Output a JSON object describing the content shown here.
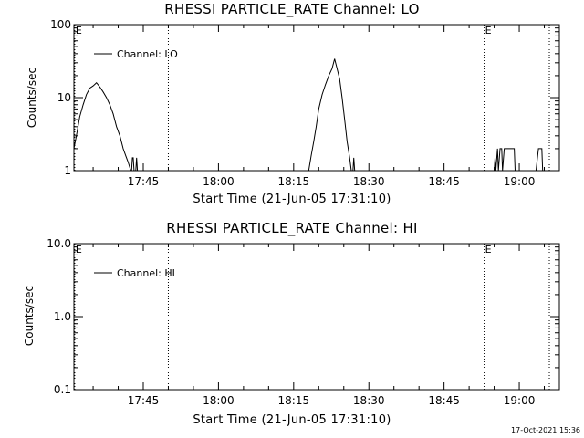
{
  "footer": {
    "timestamp": "17-Oct-2021 15:36"
  },
  "chart_data": [
    {
      "type": "line",
      "title": "RHESSI PARTICLE_RATE Channel: LO",
      "xlabel": "Start Time (21-Jun-05 17:31:10)",
      "ylabel": "Counts/sec",
      "yscale": "log",
      "ylim": [
        1,
        100
      ],
      "xlim": [
        "17:31:10",
        "19:08:00"
      ],
      "x_ticks": [
        "17:45",
        "18:00",
        "18:15",
        "18:30",
        "18:45",
        "19:00"
      ],
      "y_ticks": [
        "1",
        "10",
        "100"
      ],
      "legend": {
        "position": "top-left",
        "entries": [
          "Channel: LO"
        ]
      },
      "event_markers": [
        {
          "time": "17:31:20",
          "label": "E"
        },
        {
          "time": "17:50:00",
          "label": ""
        },
        {
          "time": "18:53:00",
          "label": "E"
        },
        {
          "time": "19:06:00",
          "label": ""
        }
      ],
      "series": [
        {
          "name": "Channel: LO",
          "segments": [
            [
              [
                "17:31:10",
                2.0
              ],
              [
                "17:31:40",
                3.0
              ],
              [
                "17:32:20",
                5.5
              ],
              [
                "17:33:00",
                8.0
              ],
              [
                "17:33:40",
                11.0
              ],
              [
                "17:34:20",
                13.5
              ],
              [
                "17:35:00",
                14.5
              ],
              [
                "17:35:40",
                16.0
              ],
              [
                "17:36:20",
                14.0
              ],
              [
                "17:37:00",
                12.0
              ],
              [
                "17:37:40",
                10.0
              ],
              [
                "17:38:20",
                8.0
              ],
              [
                "17:39:00",
                6.0
              ],
              [
                "17:39:40",
                4.0
              ],
              [
                "17:40:20",
                3.0
              ],
              [
                "17:41:00",
                2.0
              ],
              [
                "17:41:30",
                1.6
              ],
              [
                "17:42:00",
                1.3
              ],
              [
                "17:42:30",
                1.0
              ]
            ],
            [
              [
                "17:42:40",
                1.0
              ],
              [
                "17:42:50",
                1.5
              ],
              [
                "17:43:00",
                1.5
              ],
              [
                "17:43:10",
                1.0
              ]
            ],
            [
              [
                "17:43:30",
                1.0
              ],
              [
                "17:43:40",
                1.5
              ],
              [
                "17:43:50",
                1.0
              ]
            ],
            [
              [
                "18:18:00",
                1.0
              ],
              [
                "18:18:30",
                1.6
              ],
              [
                "18:19:00",
                2.5
              ],
              [
                "18:19:30",
                4.0
              ],
              [
                "18:20:00",
                7.0
              ],
              [
                "18:20:40",
                11.0
              ],
              [
                "18:21:20",
                15.0
              ],
              [
                "18:22:00",
                20.0
              ],
              [
                "18:22:40",
                25.0
              ],
              [
                "18:23:10",
                34.0
              ],
              [
                "18:23:40",
                25.0
              ],
              [
                "18:24:10",
                18.0
              ],
              [
                "18:24:40",
                10.0
              ],
              [
                "18:25:10",
                5.0
              ],
              [
                "18:25:40",
                2.5
              ],
              [
                "18:26:10",
                1.5
              ],
              [
                "18:26:30",
                1.0
              ]
            ],
            [
              [
                "18:26:50",
                1.0
              ],
              [
                "18:27:00",
                1.5
              ],
              [
                "18:27:10",
                1.0
              ]
            ],
            [
              [
                "18:55:00",
                1.0
              ],
              [
                "18:55:10",
                1.5
              ],
              [
                "18:55:20",
                1.0
              ],
              [
                "18:55:40",
                2.0
              ],
              [
                "18:55:50",
                1.0
              ],
              [
                "18:56:10",
                2.0
              ],
              [
                "18:56:30",
                2.0
              ],
              [
                "18:56:40",
                1.0
              ],
              [
                "18:57:00",
                2.0
              ],
              [
                "18:59:00",
                2.0
              ],
              [
                "18:59:10",
                1.0
              ]
            ],
            [
              [
                "19:03:20",
                1.0
              ],
              [
                "19:03:50",
                2.0
              ],
              [
                "19:04:30",
                2.0
              ],
              [
                "19:04:40",
                1.0
              ]
            ]
          ]
        }
      ]
    },
    {
      "type": "line",
      "title": "RHESSI PARTICLE_RATE Channel: HI",
      "xlabel": "Start Time (21-Jun-05 17:31:10)",
      "ylabel": "Counts/sec",
      "yscale": "log",
      "ylim": [
        0.1,
        10
      ],
      "xlim": [
        "17:31:10",
        "19:08:00"
      ],
      "x_ticks": [
        "17:45",
        "18:00",
        "18:15",
        "18:30",
        "18:45",
        "19:00"
      ],
      "y_ticks": [
        "0.1",
        "1.0",
        "10.0"
      ],
      "legend": {
        "position": "top-left",
        "entries": [
          "Channel: HI"
        ]
      },
      "event_markers": [
        {
          "time": "17:31:20",
          "label": "E"
        },
        {
          "time": "17:50:00",
          "label": ""
        },
        {
          "time": "18:53:00",
          "label": "E"
        },
        {
          "time": "19:06:00",
          "label": ""
        }
      ],
      "series": [
        {
          "name": "Channel: HI",
          "segments": []
        }
      ]
    }
  ]
}
